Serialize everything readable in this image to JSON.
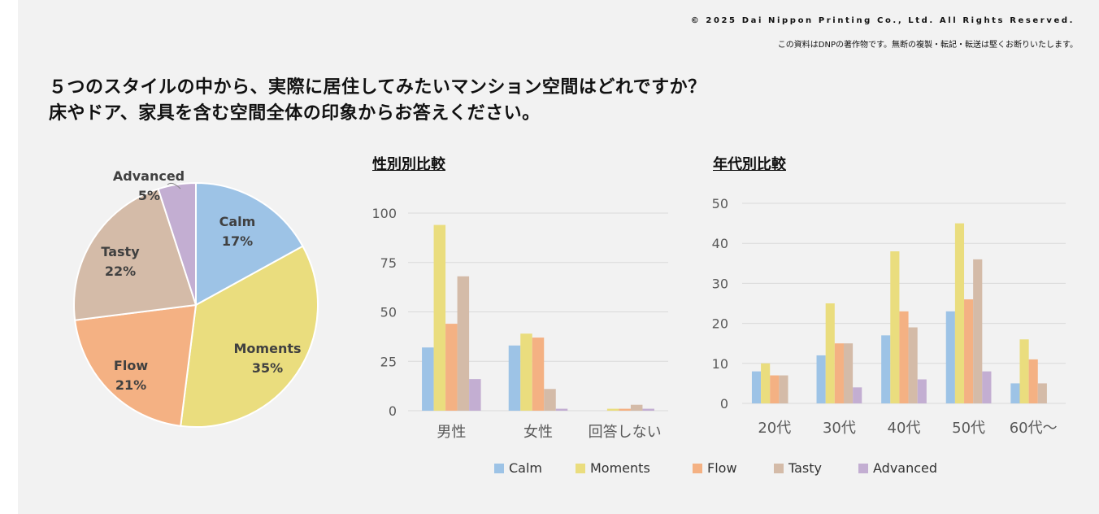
{
  "header": {
    "copyright": "© 2025 Dai Nippon Printing Co., Ltd. All Rights Reserved.",
    "notice": "この資料はDNPの著作物です。無断の複製・転記・転送は堅くお断りいたします。"
  },
  "title_line1": "５つのスタイルの中から、実際に居住してみたいマンション空間はどれですか？",
  "title_line2": "床やドア、家具を含む空間全体の印象からお答えください。",
  "colors": {
    "Calm": "#9dc3e6",
    "Moments": "#eadd7e",
    "Flow": "#f4b183",
    "Tasty": "#d4bba8",
    "Advanced": "#c3aed2"
  },
  "chart_data": [
    {
      "type": "pie",
      "title": "",
      "labels": [
        "Calm",
        "Moments",
        "Flow",
        "Tasty",
        "Advanced"
      ],
      "values": [
        17,
        35,
        21,
        22,
        5
      ],
      "value_labels": [
        "17%",
        "35%",
        "21%",
        "22%",
        "5%"
      ]
    },
    {
      "type": "bar",
      "title": "性別別比較",
      "categories": [
        "男性",
        "女性",
        "回答しない"
      ],
      "series": [
        {
          "name": "Calm",
          "values": [
            32,
            33,
            0
          ]
        },
        {
          "name": "Moments",
          "values": [
            94,
            39,
            1
          ]
        },
        {
          "name": "Flow",
          "values": [
            44,
            37,
            1
          ]
        },
        {
          "name": "Tasty",
          "values": [
            68,
            11,
            3
          ]
        },
        {
          "name": "Advanced",
          "values": [
            16,
            1,
            1
          ]
        }
      ],
      "ylim": [
        0,
        100
      ],
      "yticks": [
        0,
        25,
        50,
        75,
        100
      ],
      "grid": true
    },
    {
      "type": "bar",
      "title": "年代別比較",
      "categories": [
        "20代",
        "30代",
        "40代",
        "50代",
        "60代～"
      ],
      "series": [
        {
          "name": "Calm",
          "values": [
            8,
            12,
            17,
            23,
            5
          ]
        },
        {
          "name": "Moments",
          "values": [
            10,
            25,
            38,
            45,
            16
          ]
        },
        {
          "name": "Flow",
          "values": [
            7,
            15,
            23,
            26,
            11
          ]
        },
        {
          "name": "Tasty",
          "values": [
            7,
            15,
            19,
            36,
            5
          ]
        },
        {
          "name": "Advanced",
          "values": [
            0,
            4,
            6,
            8,
            0
          ]
        }
      ],
      "ylim": [
        0,
        50
      ],
      "yticks": [
        0,
        10,
        20,
        30,
        40,
        50
      ],
      "grid": true
    }
  ],
  "legend": [
    "Calm",
    "Moments",
    "Flow",
    "Tasty",
    "Advanced"
  ],
  "legend_position": "bottom"
}
